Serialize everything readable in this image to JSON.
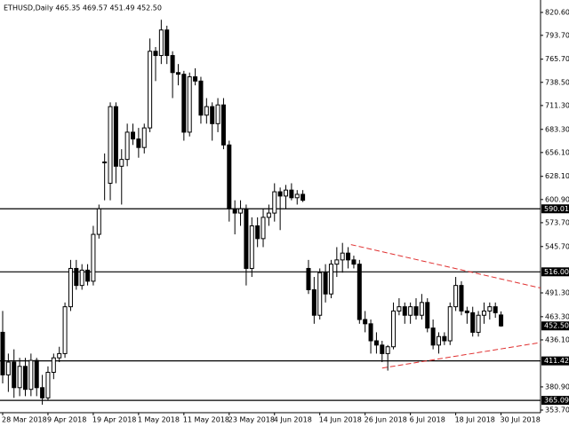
{
  "chart_data": {
    "type": "candlestick",
    "title": "ETHUSD,Daily  465.35 469.57 451.49 452.50",
    "categories": [
      "28 Mar 2018",
      null,
      null,
      null,
      null,
      null,
      null,
      null,
      "9 Apr 2018",
      null,
      null,
      null,
      null,
      null,
      null,
      null,
      "19 Apr 2018",
      null,
      null,
      null,
      null,
      null,
      null,
      null,
      "1 May 2018",
      null,
      null,
      null,
      null,
      null,
      null,
      null,
      "11 May 2018",
      null,
      null,
      null,
      null,
      null,
      null,
      null,
      "23 May 2018",
      null,
      null,
      null,
      null,
      null,
      null,
      null,
      "4 Jun 2018",
      null,
      null,
      null,
      null,
      null,
      null,
      null,
      "14 Jun 2018",
      null,
      null,
      null,
      null,
      null,
      null,
      null,
      "26 Jun 2018",
      null,
      null,
      null,
      null,
      null,
      null,
      null,
      "6 Jul 2018",
      null,
      null,
      null,
      null,
      null,
      null,
      null,
      "18 Jul 2018",
      null,
      null,
      null,
      null,
      null,
      null,
      null,
      "30 Jul 2018"
    ],
    "open": [
      445,
      395,
      410,
      380,
      405,
      378,
      412,
      380,
      368,
      398,
      415,
      420,
      475,
      520,
      500,
      518,
      505,
      560,
      645,
      620,
      710,
      640,
      648,
      680,
      672,
      662,
      685,
      775,
      770,
      800,
      770,
      750,
      748,
      680,
      745,
      740,
      700,
      710,
      690,
      712,
      665,
      590,
      585,
      590,
      520,
      570,
      555,
      580,
      585,
      610,
      605,
      612,
      603,
      607,
      520,
      495,
      465,
      515,
      490,
      525,
      530,
      538,
      530,
      525,
      460,
      455,
      435,
      430,
      420,
      428,
      470,
      475,
      465,
      475,
      465,
      480,
      450,
      430,
      440,
      435,
      475,
      500,
      470,
      468,
      445,
      465,
      470,
      475,
      465.35
    ],
    "high": [
      470,
      420,
      425,
      415,
      415,
      420,
      415,
      395,
      405,
      420,
      428,
      480,
      530,
      530,
      525,
      525,
      570,
      595,
      655,
      715,
      715,
      660,
      690,
      690,
      685,
      690,
      790,
      780,
      812,
      805,
      775,
      760,
      752,
      750,
      755,
      745,
      720,
      715,
      720,
      720,
      670,
      600,
      600,
      595,
      580,
      580,
      590,
      595,
      620,
      615,
      618,
      620,
      612,
      612,
      530,
      510,
      520,
      525,
      530,
      545,
      550,
      545,
      535,
      530,
      470,
      460,
      445,
      435,
      430,
      480,
      485,
      480,
      480,
      485,
      490,
      485,
      460,
      445,
      445,
      480,
      510,
      505,
      475,
      475,
      470,
      480,
      480,
      480,
      469.57
    ],
    "low": [
      385,
      375,
      368,
      370,
      370,
      370,
      370,
      360,
      365,
      390,
      410,
      415,
      470,
      495,
      495,
      500,
      500,
      555,
      600,
      600,
      620,
      595,
      640,
      665,
      650,
      655,
      680,
      740,
      760,
      760,
      720,
      735,
      670,
      675,
      735,
      690,
      690,
      670,
      680,
      660,
      575,
      560,
      570,
      500,
      510,
      545,
      545,
      570,
      575,
      565,
      590,
      600,
      595,
      598,
      490,
      455,
      460,
      480,
      485,
      510,
      515,
      520,
      520,
      455,
      445,
      420,
      420,
      410,
      400,
      425,
      465,
      455,
      455,
      460,
      460,
      445,
      425,
      420,
      430,
      430,
      470,
      465,
      455,
      440,
      440,
      455,
      460,
      462,
      451.49
    ],
    "close": [
      395,
      410,
      380,
      405,
      378,
      412,
      380,
      368,
      398,
      415,
      420,
      475,
      520,
      500,
      518,
      505,
      560,
      590,
      645,
      710,
      640,
      648,
      680,
      672,
      662,
      685,
      775,
      770,
      800,
      770,
      750,
      748,
      680,
      745,
      740,
      700,
      710,
      690,
      712,
      665,
      590,
      585,
      590,
      520,
      570,
      555,
      580,
      585,
      610,
      605,
      612,
      603,
      607,
      600,
      495,
      465,
      515,
      490,
      525,
      530,
      538,
      530,
      525,
      460,
      455,
      435,
      430,
      420,
      428,
      470,
      475,
      465,
      475,
      465,
      480,
      450,
      430,
      440,
      435,
      475,
      500,
      470,
      468,
      445,
      465,
      470,
      475,
      468,
      452.5
    ],
    "up_color": "#ffffff",
    "down_color": "#000000",
    "ylim": [
      350.6,
      835.2
    ],
    "yticks": [
      {
        "value": 820.6,
        "label": "820.60"
      },
      {
        "value": 793.7,
        "label": "793.70"
      },
      {
        "value": 765.7,
        "label": "765.70"
      },
      {
        "value": 738.5,
        "label": "738.50"
      },
      {
        "value": 711.3,
        "label": "711.30"
      },
      {
        "value": 683.3,
        "label": "683.30"
      },
      {
        "value": 656.1,
        "label": "656.10"
      },
      {
        "value": 628.1,
        "label": "628.10"
      },
      {
        "value": 600.9,
        "label": "600.90"
      },
      {
        "value": 573.7,
        "label": "573.70"
      },
      {
        "value": 545.7,
        "label": "545.70"
      },
      {
        "value": 491.3,
        "label": "491.30"
      },
      {
        "value": 463.3,
        "label": "463.30"
      },
      {
        "value": 436.1,
        "label": "436.10"
      },
      {
        "value": 380.9,
        "label": "380.90"
      },
      {
        "value": 353.7,
        "label": "353.70"
      }
    ],
    "levels": [
      {
        "value": 590.01,
        "label": "590.01"
      },
      {
        "value": 516,
        "label": "516.00"
      },
      {
        "value": 411.42,
        "label": "411.42"
      },
      {
        "value": 365.09,
        "label": "365.09"
      }
    ],
    "current_price": {
      "value": 452.5,
      "label": "452.50"
    },
    "trendline_color": "#e03030",
    "trendlines": [
      {
        "x": [
          61.5,
          95
        ],
        "y": [
          548,
          497
        ]
      },
      {
        "x": [
          67,
          95
        ],
        "y": [
          403,
          433
        ]
      }
    ]
  }
}
